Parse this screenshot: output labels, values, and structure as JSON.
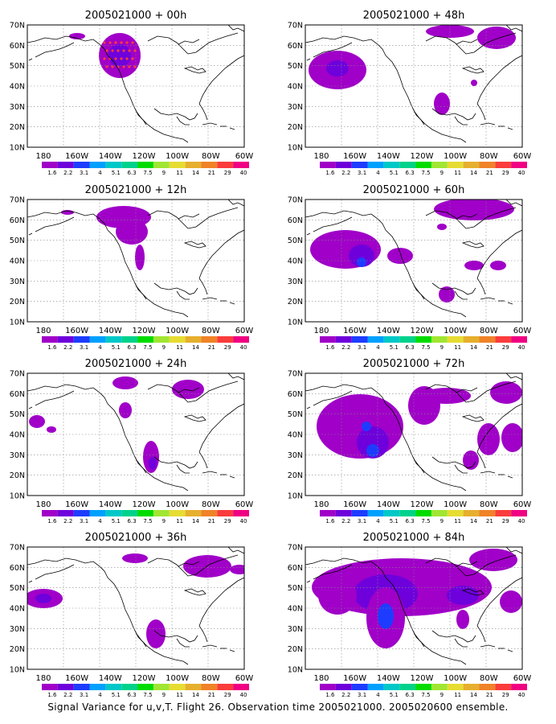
{
  "panels": [
    {
      "title": "2005021000 + 00h"
    },
    {
      "title": "2005021000 + 12h"
    },
    {
      "title": "2005021000 + 24h"
    },
    {
      "title": "2005021000 + 36h"
    },
    {
      "title": "2005021000 + 48h"
    },
    {
      "title": "2005021000 + 60h"
    },
    {
      "title": "2005021000 + 72h"
    },
    {
      "title": "2005021000 + 84h"
    }
  ],
  "lat_ticks": [
    "70N",
    "60N",
    "50N",
    "40N",
    "30N",
    "20N",
    "10N"
  ],
  "lon_ticks": [
    "180",
    "160W",
    "140W",
    "120W",
    "100W",
    "80W",
    "60W"
  ],
  "colorbar": {
    "labels": [
      "1.6",
      "2.2",
      "3.1",
      "4",
      "5.1",
      "6.3",
      "7.5",
      "9",
      "11",
      "14",
      "21",
      "29",
      "40"
    ],
    "colors": [
      "#a000c8",
      "#6e00dc",
      "#1e3cff",
      "#00a0ff",
      "#00c8c8",
      "#00d28c",
      "#00dc00",
      "#a0e632",
      "#e6dc32",
      "#e6af2d",
      "#f08228",
      "#fa3c3c",
      "#f00082"
    ]
  },
  "field_colors": {
    "level1": "#a000c8",
    "level2": "#6e00dc",
    "level3": "#1e3cff",
    "level4": "#00a0ff",
    "obs": "#fa3c3c"
  },
  "caption": "Signal Variance for u,v,T. Flight 26. Observation time 2005021000. 2005020600 ensemble."
}
